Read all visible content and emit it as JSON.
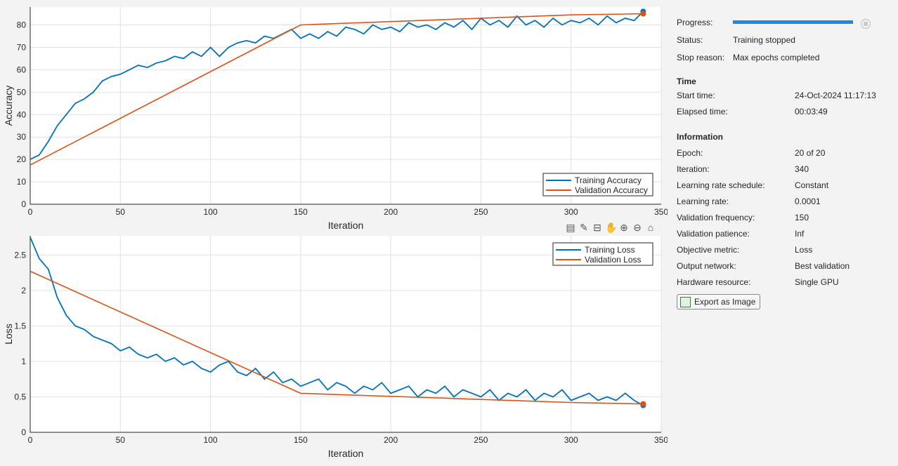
{
  "panel": {
    "progress_label": "Progress:",
    "progress_value": 1.0,
    "status_label": "Status:",
    "status_value": "Training stopped",
    "stop_reason_label": "Stop reason:",
    "stop_reason_value": "Max epochs completed",
    "time_heading": "Time",
    "start_time_label": "Start time:",
    "start_time_value": "24-Oct-2024 11:17:13",
    "elapsed_label": "Elapsed time:",
    "elapsed_value": "00:03:49",
    "info_heading": "Information",
    "info": [
      {
        "label": "Epoch:",
        "value": "20 of 20"
      },
      {
        "label": "Iteration:",
        "value": "340"
      },
      {
        "label": "Learning rate schedule:",
        "value": "Constant"
      },
      {
        "label": "Learning rate:",
        "value": "0.0001"
      },
      {
        "label": "Validation frequency:",
        "value": "150"
      },
      {
        "label": "Validation patience:",
        "value": "Inf"
      },
      {
        "label": "Objective metric:",
        "value": "Loss"
      },
      {
        "label": "Output network:",
        "value": "Best validation"
      },
      {
        "label": "Hardware resource:",
        "value": "Single GPU"
      }
    ],
    "export_label": "Export as Image"
  },
  "toolbar": [
    "legend-icon",
    "brush-icon",
    "datatip-icon",
    "pan-icon",
    "zoom-in-icon",
    "zoom-out-icon",
    "home-icon"
  ],
  "chart_data": [
    {
      "type": "line",
      "xlabel": "Iteration",
      "ylabel": "Accuracy",
      "xlim": [
        0,
        350
      ],
      "ylim": [
        0,
        88
      ],
      "xticks": [
        0,
        50,
        100,
        150,
        200,
        250,
        300,
        350
      ],
      "yticks": [
        0,
        10,
        20,
        30,
        40,
        50,
        60,
        70,
        80
      ],
      "legend_position": "bottom-right",
      "series": [
        {
          "name": "Training Accuracy",
          "color": "#0072bd",
          "x_step": 5,
          "values": [
            20,
            22,
            28,
            35,
            40,
            45,
            47,
            50,
            55,
            57,
            58,
            60,
            62,
            61,
            63,
            64,
            66,
            65,
            68,
            66,
            70,
            66,
            70,
            72,
            73,
            72,
            75,
            74,
            76,
            78,
            74,
            76,
            74,
            77,
            75,
            79,
            78,
            76,
            80,
            78,
            79,
            77,
            81,
            79,
            80,
            78,
            81,
            79,
            82,
            78,
            83,
            80,
            82,
            79,
            84,
            80,
            82,
            79,
            83,
            80,
            82,
            81,
            83,
            80,
            84,
            81,
            83,
            82,
            86
          ]
        },
        {
          "name": "Validation Accuracy",
          "color": "#d95319",
          "x": [
            0,
            150,
            300,
            340
          ],
          "values": [
            17.5,
            80,
            84.5,
            85
          ]
        }
      ]
    },
    {
      "type": "line",
      "xlabel": "Iteration",
      "ylabel": "Loss",
      "xlim": [
        0,
        350
      ],
      "ylim": [
        0,
        2.77
      ],
      "xticks": [
        0,
        50,
        100,
        150,
        200,
        250,
        300,
        350
      ],
      "yticks": [
        0,
        0.5,
        1,
        1.5,
        2,
        2.5
      ],
      "legend_position": "top-right",
      "series": [
        {
          "name": "Training Loss",
          "color": "#0072bd",
          "x_step": 5,
          "values": [
            2.75,
            2.45,
            2.3,
            1.9,
            1.65,
            1.5,
            1.45,
            1.35,
            1.3,
            1.25,
            1.15,
            1.2,
            1.1,
            1.05,
            1.1,
            1.0,
            1.05,
            0.95,
            1.0,
            0.9,
            0.85,
            0.95,
            1.0,
            0.85,
            0.8,
            0.9,
            0.75,
            0.85,
            0.7,
            0.75,
            0.65,
            0.7,
            0.75,
            0.6,
            0.7,
            0.65,
            0.55,
            0.65,
            0.6,
            0.7,
            0.55,
            0.6,
            0.65,
            0.5,
            0.6,
            0.55,
            0.65,
            0.5,
            0.6,
            0.55,
            0.5,
            0.6,
            0.45,
            0.55,
            0.5,
            0.6,
            0.45,
            0.55,
            0.5,
            0.6,
            0.45,
            0.5,
            0.55,
            0.45,
            0.5,
            0.45,
            0.55,
            0.45,
            0.38
          ]
        },
        {
          "name": "Validation Loss",
          "color": "#d95319",
          "x": [
            0,
            150,
            300,
            340
          ],
          "values": [
            2.27,
            0.55,
            0.42,
            0.4
          ]
        }
      ]
    }
  ]
}
